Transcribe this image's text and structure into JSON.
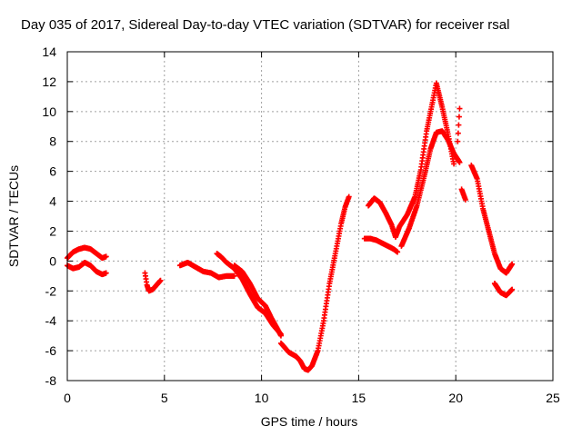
{
  "chart_data": {
    "type": "scatter",
    "title": "Day 035 of 2017, Sidereal Day-to-day VTEC variation (SDTVAR) for receiver rsal",
    "xlabel": "GPS time / hours",
    "ylabel": "SDTVAR / TECUs",
    "xlim": [
      0,
      25
    ],
    "ylim": [
      -8,
      14
    ],
    "xticks": [
      0,
      5,
      10,
      15,
      20,
      25
    ],
    "yticks": [
      -8,
      -6,
      -4,
      -2,
      0,
      2,
      4,
      6,
      8,
      10,
      12,
      14
    ],
    "grid": true,
    "marker": "plus",
    "series": [
      {
        "name": "SDTVAR",
        "color": "#ff0000",
        "arcs": [
          [
            [
              0.0,
              0.2
            ],
            [
              0.3,
              0.6
            ],
            [
              0.6,
              0.8
            ],
            [
              0.9,
              0.9
            ],
            [
              1.2,
              0.8
            ],
            [
              1.5,
              0.5
            ],
            [
              1.8,
              0.2
            ],
            [
              2.0,
              0.3
            ]
          ],
          [
            [
              0.0,
              -0.3
            ],
            [
              0.3,
              -0.5
            ],
            [
              0.6,
              -0.4
            ],
            [
              0.9,
              -0.1
            ],
            [
              1.2,
              -0.3
            ],
            [
              1.5,
              -0.7
            ],
            [
              1.8,
              -0.9
            ],
            [
              2.0,
              -0.8
            ]
          ],
          [
            [
              4.0,
              -0.8
            ],
            [
              4.1,
              -1.6
            ],
            [
              4.2,
              -2.0
            ],
            [
              4.4,
              -1.9
            ],
            [
              4.6,
              -1.6
            ],
            [
              4.8,
              -1.3
            ]
          ],
          [
            [
              5.8,
              -0.3
            ],
            [
              6.2,
              -0.1
            ],
            [
              6.6,
              -0.4
            ],
            [
              7.0,
              -0.7
            ],
            [
              7.4,
              -0.8
            ],
            [
              7.8,
              -1.1
            ],
            [
              8.2,
              -1.0
            ],
            [
              8.6,
              -1.0
            ]
          ],
          [
            [
              7.7,
              0.5
            ],
            [
              7.9,
              0.3
            ],
            [
              8.2,
              -0.1
            ],
            [
              8.6,
              -0.5
            ],
            [
              9.0,
              -1.2
            ],
            [
              9.4,
              -2.2
            ],
            [
              9.8,
              -3.1
            ],
            [
              10.2,
              -3.5
            ],
            [
              10.6,
              -4.3
            ],
            [
              11.0,
              -4.9
            ]
          ],
          [
            [
              8.6,
              -0.3
            ],
            [
              9.0,
              -0.7
            ],
            [
              9.4,
              -1.5
            ],
            [
              9.8,
              -2.5
            ],
            [
              10.2,
              -3.0
            ],
            [
              10.5,
              -3.8
            ],
            [
              10.8,
              -4.5
            ],
            [
              11.0,
              -5.0
            ]
          ],
          [
            [
              11.0,
              -5.5
            ],
            [
              11.4,
              -6.1
            ],
            [
              11.8,
              -6.4
            ],
            [
              12.0,
              -6.7
            ],
            [
              12.2,
              -7.2
            ],
            [
              12.4,
              -7.3
            ],
            [
              12.6,
              -7.0
            ],
            [
              12.9,
              -6.0
            ],
            [
              13.2,
              -4.0
            ],
            [
              13.5,
              -1.5
            ],
            [
              13.8,
              0.5
            ],
            [
              14.1,
              2.5
            ],
            [
              14.3,
              3.6
            ],
            [
              14.5,
              4.3
            ]
          ],
          [
            [
              15.3,
              1.5
            ],
            [
              15.6,
              1.5
            ],
            [
              15.9,
              1.4
            ],
            [
              16.2,
              1.2
            ],
            [
              16.5,
              1.0
            ],
            [
              16.8,
              0.8
            ],
            [
              17.0,
              0.6
            ]
          ],
          [
            [
              15.5,
              3.7
            ],
            [
              15.8,
              4.2
            ],
            [
              16.1,
              3.9
            ],
            [
              16.4,
              3.2
            ],
            [
              16.7,
              2.4
            ],
            [
              16.9,
              1.6
            ],
            [
              17.1,
              2.3
            ],
            [
              17.5,
              3.1
            ],
            [
              17.9,
              4.3
            ],
            [
              18.2,
              6.1
            ],
            [
              18.5,
              8.7
            ],
            [
              18.8,
              10.6
            ],
            [
              19.0,
              11.9
            ],
            [
              19.3,
              10.3
            ],
            [
              19.6,
              8.5
            ],
            [
              19.9,
              6.5
            ]
          ],
          [
            [
              17.2,
              1.0
            ],
            [
              17.6,
              2.2
            ],
            [
              18.0,
              3.7
            ],
            [
              18.4,
              5.8
            ],
            [
              18.7,
              7.5
            ],
            [
              19.0,
              8.6
            ],
            [
              19.3,
              8.7
            ],
            [
              19.6,
              8.1
            ],
            [
              19.9,
              7.2
            ],
            [
              20.2,
              6.6
            ]
          ],
          [
            [
              20.1,
              8.0
            ],
            [
              20.2,
              10.2
            ]
          ],
          [
            [
              20.3,
              4.8
            ],
            [
              20.5,
              4.1
            ]
          ],
          [
            [
              20.8,
              6.4
            ],
            [
              21.1,
              5.5
            ],
            [
              21.4,
              3.5
            ],
            [
              21.7,
              2.0
            ],
            [
              22.0,
              0.5
            ],
            [
              22.3,
              -0.5
            ],
            [
              22.6,
              -0.8
            ],
            [
              22.9,
              -0.2
            ]
          ],
          [
            [
              22.0,
              -1.5
            ],
            [
              22.3,
              -2.1
            ],
            [
              22.6,
              -2.3
            ],
            [
              22.9,
              -1.9
            ]
          ]
        ]
      }
    ]
  }
}
